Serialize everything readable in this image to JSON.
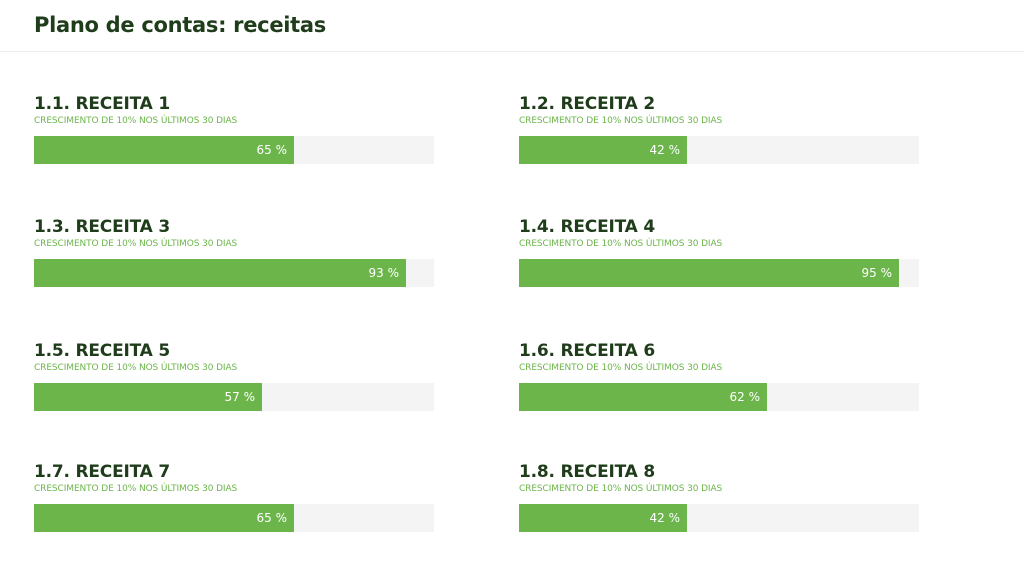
{
  "page": {
    "title": "Plano de contas: receitas"
  },
  "colors": {
    "title": "#1f3d1a",
    "accent": "#6cb54a",
    "track": "#f4f4f4",
    "divider": "#ececec"
  },
  "items": [
    {
      "title": "1.1. RECEITA 1",
      "subtitle": "CRESCIMENTO DE 10% NOS ÚLTIMOS 30 DIAS",
      "percent": 65,
      "percent_label": "65 %"
    },
    {
      "title": "1.2. RECEITA 2",
      "subtitle": "CRESCIMENTO DE 10% NOS ÚLTIMOS 30 DIAS",
      "percent": 42,
      "percent_label": "42 %"
    },
    {
      "title": "1.3. RECEITA 3",
      "subtitle": "CRESCIMENTO DE 10% NOS ÚLTIMOS 30 DIAS",
      "percent": 93,
      "percent_label": "93 %"
    },
    {
      "title": "1.4. RECEITA 4",
      "subtitle": "CRESCIMENTO DE 10% NOS ÚLTIMOS 30 DIAS",
      "percent": 95,
      "percent_label": "95 %"
    },
    {
      "title": "1.5. RECEITA 5",
      "subtitle": "CRESCIMENTO DE 10% NOS ÚLTIMOS 30 DIAS",
      "percent": 57,
      "percent_label": "57 %"
    },
    {
      "title": "1.6. RECEITA 6",
      "subtitle": "CRESCIMENTO DE 10% NOS ÚLTIMOS 30 DIAS",
      "percent": 62,
      "percent_label": "62 %"
    },
    {
      "title": "1.7. RECEITA 7",
      "subtitle": "CRESCIMENTO DE 10% NOS ÚLTIMOS 30 DIAS",
      "percent": 65,
      "percent_label": "65 %"
    },
    {
      "title": "1.8. RECEITA 8",
      "subtitle": "CRESCIMENTO DE 10% NOS ÚLTIMOS 30 DIAS",
      "percent": 42,
      "percent_label": "42 %"
    }
  ]
}
